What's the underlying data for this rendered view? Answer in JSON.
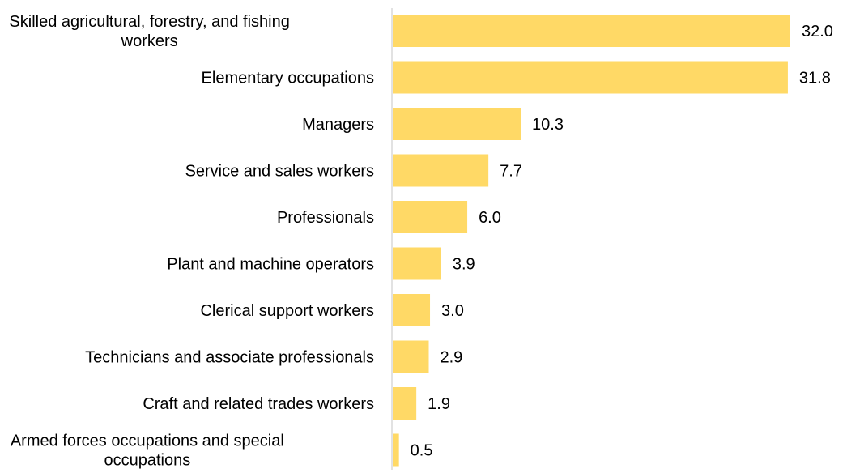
{
  "chart_data": {
    "type": "bar",
    "orientation": "horizontal",
    "categories": [
      [
        "Skilled agricultural, forestry, and fishing",
        "workers"
      ],
      [
        "Elementary occupations"
      ],
      [
        "Managers"
      ],
      [
        "Service and sales workers"
      ],
      [
        "Professionals"
      ],
      [
        "Plant and machine operators"
      ],
      [
        "Clerical support workers"
      ],
      [
        "Technicians and associate professionals"
      ],
      [
        "Craft and related trades workers"
      ],
      [
        "Armed forces occupations and special",
        "occupations"
      ]
    ],
    "values": [
      32.0,
      31.8,
      10.3,
      7.7,
      6.0,
      3.9,
      3.0,
      2.9,
      1.9,
      0.5
    ],
    "value_labels": [
      "32.0",
      "31.8",
      "10.3",
      "7.7",
      "6.0",
      "3.9",
      "3.0",
      "2.9",
      "1.9",
      "0.5"
    ],
    "xlim": [
      0,
      32.0
    ],
    "bar_color": "#FFD966",
    "axis_color": "#D9D9D9",
    "grid": false,
    "legend": "none"
  }
}
